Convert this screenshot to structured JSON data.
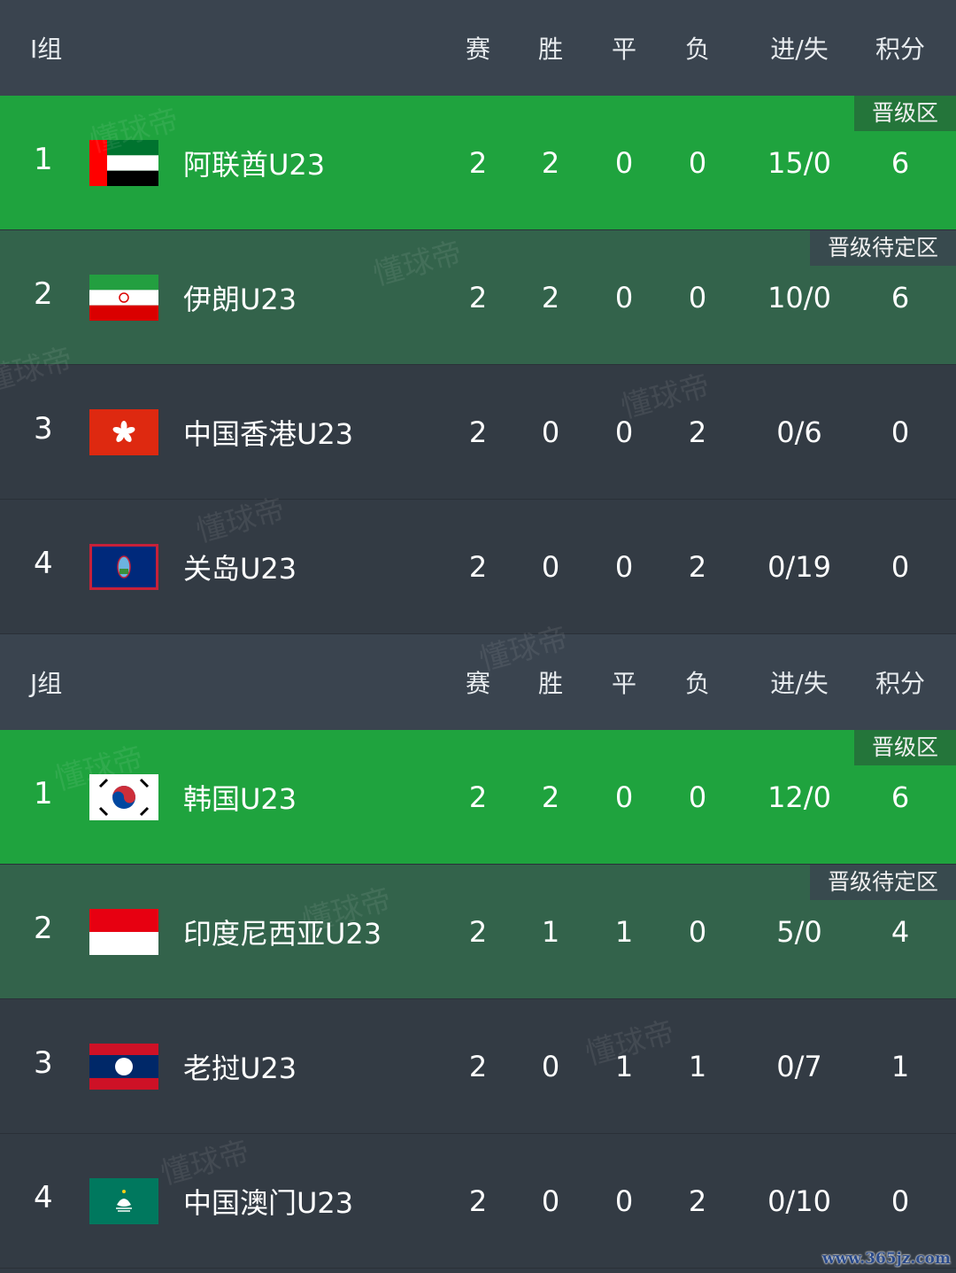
{
  "columns": [
    "赛",
    "胜",
    "平",
    "负",
    "进/失",
    "积分"
  ],
  "colors": {
    "header": "#3a444f",
    "row": "#333b44",
    "qualified": "#1fa33e",
    "pending": "#33634b"
  },
  "watermark": "懂球帝",
  "site_watermark": "www.365jz.com",
  "groups": [
    {
      "name": "I组",
      "rows": [
        {
          "rank": "1",
          "team": "阿联酋U23",
          "flag": "uae-flag",
          "p": "2",
          "w": "2",
          "d": "0",
          "l": "0",
          "gf_ga": "15/0",
          "pts": "6",
          "zone": "晋级区",
          "status": "qualified"
        },
        {
          "rank": "2",
          "team": "伊朗U23",
          "flag": "iran-flag",
          "p": "2",
          "w": "2",
          "d": "0",
          "l": "0",
          "gf_ga": "10/0",
          "pts": "6",
          "zone": "晋级待定区",
          "status": "pending"
        },
        {
          "rank": "3",
          "team": "中国香港U23",
          "flag": "hong-kong-flag",
          "p": "2",
          "w": "0",
          "d": "0",
          "l": "2",
          "gf_ga": "0/6",
          "pts": "0",
          "zone": "",
          "status": "none"
        },
        {
          "rank": "4",
          "team": "关岛U23",
          "flag": "guam-flag",
          "p": "2",
          "w": "0",
          "d": "0",
          "l": "2",
          "gf_ga": "0/19",
          "pts": "0",
          "zone": "",
          "status": "none"
        }
      ]
    },
    {
      "name": "J组",
      "rows": [
        {
          "rank": "1",
          "team": "韩国U23",
          "flag": "korea-flag",
          "p": "2",
          "w": "2",
          "d": "0",
          "l": "0",
          "gf_ga": "12/0",
          "pts": "6",
          "zone": "晋级区",
          "status": "qualified"
        },
        {
          "rank": "2",
          "team": "印度尼西亚U23",
          "flag": "indonesia-flag",
          "p": "2",
          "w": "1",
          "d": "1",
          "l": "0",
          "gf_ga": "5/0",
          "pts": "4",
          "zone": "晋级待定区",
          "status": "pending"
        },
        {
          "rank": "3",
          "team": "老挝U23",
          "flag": "laos-flag",
          "p": "2",
          "w": "0",
          "d": "1",
          "l": "1",
          "gf_ga": "0/7",
          "pts": "1",
          "zone": "",
          "status": "none"
        },
        {
          "rank": "4",
          "team": "中国澳门U23",
          "flag": "macau-flag",
          "p": "2",
          "w": "0",
          "d": "0",
          "l": "2",
          "gf_ga": "0/10",
          "pts": "0",
          "zone": "",
          "status": "none"
        }
      ]
    }
  ]
}
